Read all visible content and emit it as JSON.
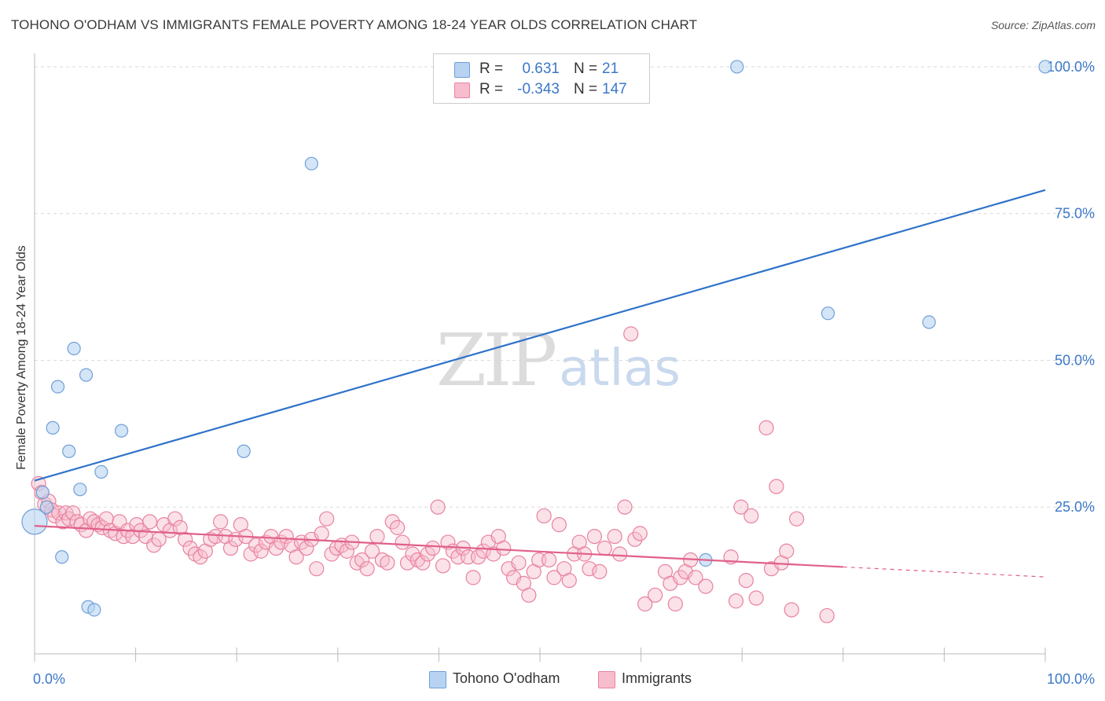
{
  "title": "TOHONO O'ODHAM VS IMMIGRANTS FEMALE POVERTY AMONG 18-24 YEAR OLDS CORRELATION CHART",
  "source": "Source: ZipAtlas.com",
  "watermark": {
    "zip": "ZIP",
    "atlas": "atlas"
  },
  "legend": {
    "rows": [
      {
        "r_label": "R =",
        "r_value": "0.631",
        "n_label": "N =",
        "n_value": "21"
      },
      {
        "r_label": "R =",
        "r_value": "-0.343",
        "n_label": "N =",
        "n_value": "147"
      }
    ]
  },
  "bottom_legend": [
    "Tohono O'odham",
    "Immigrants"
  ],
  "colors": {
    "blue_fill": "#b8d3f2",
    "blue_stroke": "#6f9fd8",
    "blue_line": "#2f73c9",
    "pink_fill": "#f7bccd",
    "pink_stroke": "#e8829f",
    "pink_line": "#e0608a",
    "grid": "#d9d9d9",
    "tick_label": "#3b78c7"
  },
  "chart_data": {
    "type": "scatter",
    "title": "TOHONO O'ODHAM VS IMMIGRANTS FEMALE POVERTY AMONG 18-24 YEAR OLDS CORRELATION CHART",
    "xlabel": "",
    "ylabel": "Female Poverty Among 18-24 Year Olds",
    "xlim": [
      0,
      100
    ],
    "ylim": [
      0,
      102
    ],
    "x_tick_labels": [
      "0.0%",
      "100.0%"
    ],
    "y_ticks": [
      25,
      50,
      75,
      100
    ],
    "y_tick_labels": [
      "25.0%",
      "50.0%",
      "75.0%",
      "100.0%"
    ],
    "grid": true,
    "legend_position": "top-center",
    "series": [
      {
        "name": "Tohono O'odham",
        "points": [
          [
            0,
            22.5
          ],
          [
            0.8,
            27.5
          ],
          [
            1.2,
            25.0
          ],
          [
            1.8,
            38.5
          ],
          [
            2.3,
            45.5
          ],
          [
            2.7,
            16.5
          ],
          [
            3.4,
            34.5
          ],
          [
            3.9,
            52.0
          ],
          [
            4.5,
            28.0
          ],
          [
            5.1,
            47.5
          ],
          [
            5.3,
            8.0
          ],
          [
            5.9,
            7.5
          ],
          [
            6.6,
            31.0
          ],
          [
            8.6,
            38.0
          ],
          [
            20.7,
            34.5
          ],
          [
            27.4,
            83.5
          ],
          [
            66.4,
            16.0
          ],
          [
            69.5,
            100.0
          ],
          [
            78.5,
            58.0
          ],
          [
            88.5,
            56.5
          ],
          [
            100.0,
            100.0
          ]
        ],
        "trend": {
          "x": [
            0,
            100
          ],
          "y": [
            29.5,
            79.0
          ]
        }
      },
      {
        "name": "Immigrants",
        "points": [
          [
            0.4,
            29.0
          ],
          [
            0.7,
            27.5
          ],
          [
            1.0,
            25.5
          ],
          [
            1.4,
            26.0
          ],
          [
            1.7,
            24.5
          ],
          [
            2.0,
            23.5
          ],
          [
            2.4,
            24.0
          ],
          [
            2.8,
            22.5
          ],
          [
            3.1,
            24.0
          ],
          [
            3.4,
            23.0
          ],
          [
            3.8,
            24.0
          ],
          [
            4.2,
            22.5
          ],
          [
            4.6,
            22.0
          ],
          [
            5.1,
            21.0
          ],
          [
            5.5,
            23.0
          ],
          [
            5.9,
            22.5
          ],
          [
            6.3,
            22.0
          ],
          [
            6.7,
            21.5
          ],
          [
            7.1,
            23.0
          ],
          [
            7.5,
            21.0
          ],
          [
            8.0,
            20.5
          ],
          [
            8.4,
            22.5
          ],
          [
            8.8,
            20.0
          ],
          [
            9.2,
            21.0
          ],
          [
            9.7,
            20.0
          ],
          [
            10.1,
            22.0
          ],
          [
            10.5,
            21.0
          ],
          [
            11.0,
            20.0
          ],
          [
            11.4,
            22.5
          ],
          [
            11.8,
            18.5
          ],
          [
            12.3,
            19.5
          ],
          [
            12.8,
            22.0
          ],
          [
            13.4,
            21.0
          ],
          [
            13.9,
            23.0
          ],
          [
            14.4,
            21.5
          ],
          [
            14.9,
            19.5
          ],
          [
            15.4,
            18.0
          ],
          [
            15.9,
            17.0
          ],
          [
            16.4,
            16.5
          ],
          [
            16.9,
            17.5
          ],
          [
            17.4,
            19.5
          ],
          [
            17.9,
            20.0
          ],
          [
            18.4,
            22.5
          ],
          [
            18.9,
            20.0
          ],
          [
            19.4,
            18.0
          ],
          [
            19.9,
            19.5
          ],
          [
            20.4,
            22.0
          ],
          [
            20.9,
            20.0
          ],
          [
            21.4,
            17.0
          ],
          [
            21.9,
            18.5
          ],
          [
            22.4,
            17.5
          ],
          [
            22.9,
            19.0
          ],
          [
            23.4,
            20.0
          ],
          [
            23.9,
            18.0
          ],
          [
            24.4,
            19.0
          ],
          [
            24.9,
            20.0
          ],
          [
            25.4,
            18.5
          ],
          [
            25.9,
            16.5
          ],
          [
            26.4,
            19.0
          ],
          [
            26.9,
            18.0
          ],
          [
            27.4,
            19.5
          ],
          [
            27.9,
            14.5
          ],
          [
            28.4,
            20.5
          ],
          [
            28.9,
            23.0
          ],
          [
            29.4,
            17.0
          ],
          [
            29.9,
            18.0
          ],
          [
            30.4,
            18.5
          ],
          [
            30.9,
            17.5
          ],
          [
            31.4,
            19.0
          ],
          [
            31.9,
            15.5
          ],
          [
            32.4,
            16.0
          ],
          [
            32.9,
            14.5
          ],
          [
            33.4,
            17.5
          ],
          [
            33.9,
            20.0
          ],
          [
            34.4,
            16.0
          ],
          [
            34.9,
            15.5
          ],
          [
            35.4,
            22.5
          ],
          [
            35.9,
            21.5
          ],
          [
            36.4,
            19.0
          ],
          [
            36.9,
            15.5
          ],
          [
            37.4,
            17.0
          ],
          [
            37.9,
            16.0
          ],
          [
            38.4,
            15.5
          ],
          [
            38.9,
            17.0
          ],
          [
            39.4,
            18.0
          ],
          [
            39.9,
            25.0
          ],
          [
            40.4,
            15.0
          ],
          [
            40.9,
            19.0
          ],
          [
            41.4,
            17.5
          ],
          [
            41.9,
            16.5
          ],
          [
            42.4,
            18.0
          ],
          [
            42.9,
            16.5
          ],
          [
            43.4,
            13.0
          ],
          [
            43.9,
            16.5
          ],
          [
            44.4,
            17.5
          ],
          [
            44.9,
            19.0
          ],
          [
            45.4,
            17.0
          ],
          [
            45.9,
            20.0
          ],
          [
            46.4,
            18.0
          ],
          [
            46.9,
            14.5
          ],
          [
            47.4,
            13.0
          ],
          [
            47.9,
            15.5
          ],
          [
            48.4,
            12.0
          ],
          [
            48.9,
            10.0
          ],
          [
            49.4,
            14.0
          ],
          [
            49.9,
            16.0
          ],
          [
            50.4,
            23.5
          ],
          [
            50.9,
            16.0
          ],
          [
            51.4,
            13.0
          ],
          [
            51.9,
            22.0
          ],
          [
            52.4,
            14.5
          ],
          [
            52.9,
            12.5
          ],
          [
            53.4,
            17.0
          ],
          [
            53.9,
            19.0
          ],
          [
            54.4,
            17.0
          ],
          [
            54.9,
            14.5
          ],
          [
            55.4,
            20.0
          ],
          [
            55.9,
            14.0
          ],
          [
            56.4,
            18.0
          ],
          [
            57.4,
            20.0
          ],
          [
            57.9,
            17.0
          ],
          [
            58.4,
            25.0
          ],
          [
            59.4,
            19.5
          ],
          [
            59.9,
            20.5
          ],
          [
            60.4,
            8.5
          ],
          [
            61.4,
            10.0
          ],
          [
            62.4,
            14.0
          ],
          [
            62.9,
            12.0
          ],
          [
            63.4,
            8.5
          ],
          [
            63.9,
            13.0
          ],
          [
            64.4,
            14.0
          ],
          [
            64.9,
            16.0
          ],
          [
            65.4,
            13.0
          ],
          [
            66.4,
            11.5
          ],
          [
            68.9,
            16.5
          ],
          [
            69.4,
            9.0
          ],
          [
            69.9,
            25.0
          ],
          [
            70.4,
            12.5
          ],
          [
            70.9,
            23.5
          ],
          [
            71.4,
            9.5
          ],
          [
            72.4,
            38.5
          ],
          [
            72.9,
            14.5
          ],
          [
            73.4,
            28.5
          ],
          [
            73.9,
            15.5
          ],
          [
            74.4,
            17.5
          ],
          [
            74.9,
            7.5
          ],
          [
            75.4,
            23.0
          ],
          [
            78.4,
            6.5
          ],
          [
            59.0,
            54.5
          ]
        ],
        "trend": {
          "x": [
            0,
            80
          ],
          "y": [
            21.8,
            14.8
          ]
        },
        "trend_extension": {
          "x": [
            80,
            100
          ],
          "y": [
            14.8,
            13.1
          ]
        }
      }
    ]
  }
}
